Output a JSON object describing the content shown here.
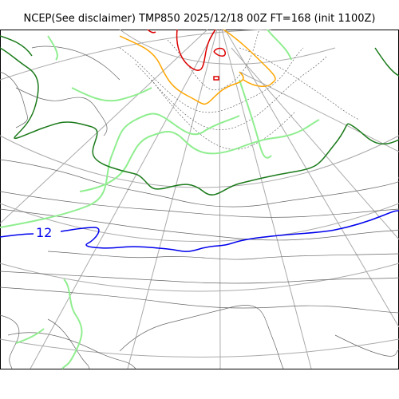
{
  "title": "NCEP(See disclaimer) TMP850 2025/12/18 00Z FT=168 (init 1100Z)",
  "map": {
    "contour_label": "12",
    "colors": {
      "coastline": "#555555",
      "graticule": "#aaaaaa",
      "isotherm_12": "#0000ee",
      "isotherm_0": "#1a7a1a",
      "isotherm_light": "#90ee90",
      "isotherm_neg12": "#ffa500",
      "isotherm_neg24": "#dd0000",
      "isotherm_minor": "#666666"
    }
  }
}
